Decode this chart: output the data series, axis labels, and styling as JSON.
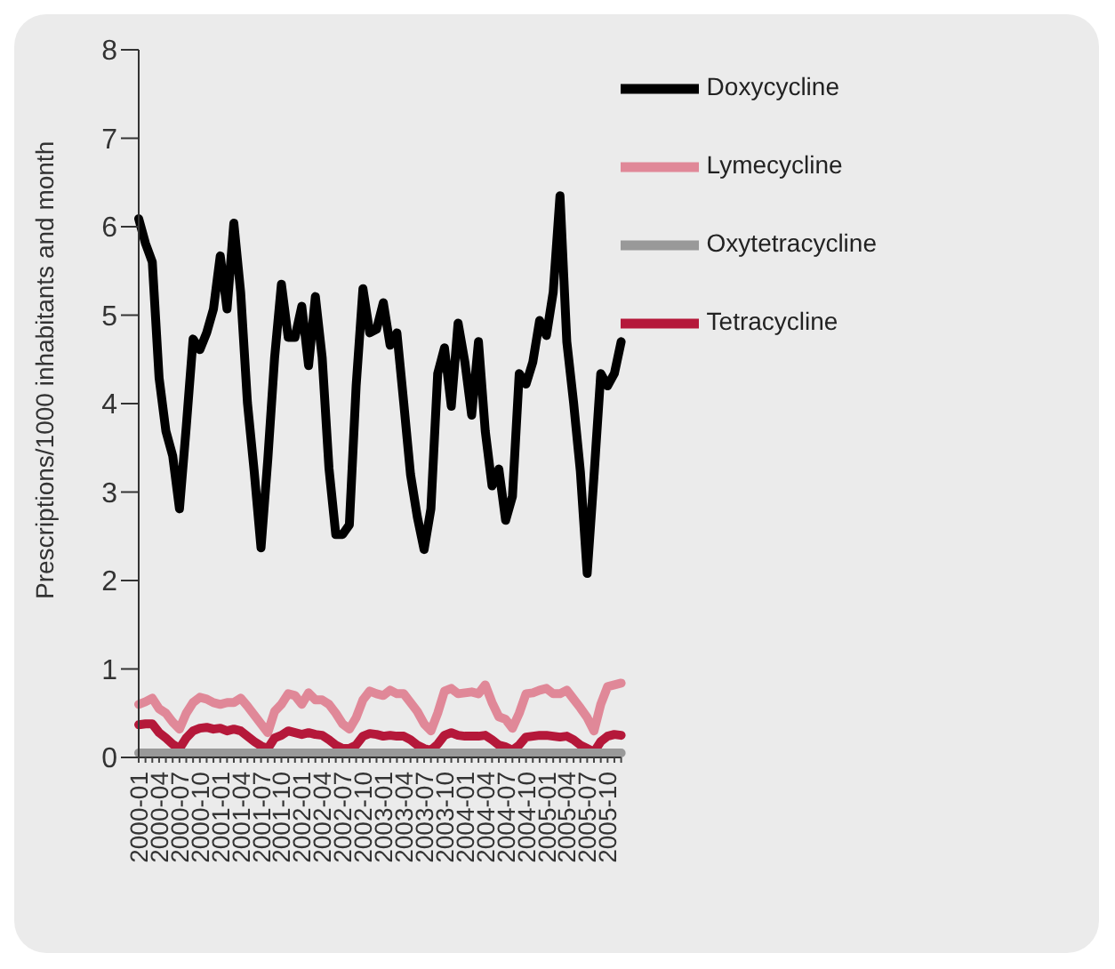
{
  "chart_data": {
    "type": "line",
    "ylabel": "Prescriptions/1000 inhabitants and month",
    "categories": [
      "2000-01",
      null,
      null,
      "2000-04",
      null,
      null,
      "2000-07",
      null,
      null,
      "2000-10",
      null,
      null,
      "2001-01",
      null,
      null,
      "2001-04",
      null,
      null,
      "2001-07",
      null,
      null,
      "2001-10",
      null,
      null,
      "2002-01",
      null,
      null,
      "2002-04",
      null,
      null,
      "2002-07",
      null,
      null,
      "2002-10",
      null,
      null,
      "2003-01",
      null,
      null,
      "2003-04",
      null,
      null,
      "2003-07",
      null,
      null,
      "2003-10",
      null,
      null,
      "2004-01",
      null,
      null,
      "2004-04",
      null,
      null,
      "2004-07",
      null,
      null,
      "2004-10",
      null,
      null,
      "2005-01",
      null,
      null,
      "2005-04",
      null,
      null,
      "2005-07",
      null,
      null,
      "2005-10",
      null,
      null
    ],
    "series": [
      {
        "name": "Doxycycline",
        "color": "#000000",
        "values": [
          6.09,
          5.81,
          5.6,
          4.29,
          3.69,
          3.41,
          2.81,
          3.74,
          4.73,
          4.61,
          4.8,
          5.07,
          5.67,
          5.07,
          6.04,
          5.26,
          4.01,
          3.23,
          2.37,
          3.37,
          4.52,
          5.35,
          4.75,
          4.75,
          5.1,
          4.43,
          5.21,
          4.52,
          3.27,
          2.52,
          2.52,
          2.63,
          4.2,
          5.3,
          4.8,
          4.84,
          5.14,
          4.66,
          4.8,
          4.01,
          3.2,
          2.72,
          2.35,
          2.81,
          4.34,
          4.63,
          3.97,
          4.91,
          4.47,
          3.87,
          4.7,
          3.69,
          3.07,
          3.26,
          2.68,
          2.95,
          4.34,
          4.22,
          4.47,
          4.94,
          4.77,
          5.26,
          6.35,
          4.7,
          4.01,
          3.23,
          2.08,
          3.18,
          4.34,
          4.2,
          4.34,
          4.7
        ]
      },
      {
        "name": "Lymecycline",
        "color": "#e08898",
        "values": [
          0.6,
          0.63,
          0.67,
          0.55,
          0.5,
          0.4,
          0.32,
          0.5,
          0.62,
          0.68,
          0.66,
          0.62,
          0.6,
          0.62,
          0.62,
          0.67,
          0.58,
          0.48,
          0.38,
          0.28,
          0.52,
          0.6,
          0.72,
          0.7,
          0.6,
          0.73,
          0.65,
          0.65,
          0.6,
          0.5,
          0.38,
          0.32,
          0.45,
          0.65,
          0.75,
          0.72,
          0.7,
          0.76,
          0.72,
          0.72,
          0.62,
          0.52,
          0.38,
          0.3,
          0.5,
          0.75,
          0.78,
          0.72,
          0.73,
          0.74,
          0.72,
          0.82,
          0.62,
          0.46,
          0.43,
          0.33,
          0.5,
          0.72,
          0.73,
          0.76,
          0.78,
          0.72,
          0.72,
          0.76,
          0.66,
          0.56,
          0.45,
          0.3,
          0.6,
          0.8,
          0.82,
          0.84
        ]
      },
      {
        "name": "Tetracycline",
        "color": "#b5183a",
        "values": [
          0.37,
          0.38,
          0.38,
          0.28,
          0.22,
          0.15,
          0.1,
          0.22,
          0.3,
          0.33,
          0.34,
          0.32,
          0.33,
          0.3,
          0.32,
          0.3,
          0.24,
          0.18,
          0.13,
          0.1,
          0.22,
          0.25,
          0.3,
          0.28,
          0.26,
          0.28,
          0.26,
          0.25,
          0.2,
          0.14,
          0.1,
          0.1,
          0.14,
          0.24,
          0.27,
          0.26,
          0.24,
          0.25,
          0.24,
          0.24,
          0.2,
          0.14,
          0.1,
          0.08,
          0.15,
          0.25,
          0.28,
          0.25,
          0.24,
          0.24,
          0.24,
          0.25,
          0.2,
          0.14,
          0.12,
          0.08,
          0.14,
          0.23,
          0.24,
          0.25,
          0.25,
          0.24,
          0.23,
          0.24,
          0.2,
          0.14,
          0.1,
          0.06,
          0.18,
          0.24,
          0.26,
          0.25
        ]
      },
      {
        "name": "Oxytetracycline",
        "color": "#999999",
        "values": [
          0.05,
          0.05,
          0.05,
          0.05,
          0.05,
          0.05,
          0.05,
          0.05,
          0.05,
          0.05,
          0.05,
          0.05,
          0.05,
          0.05,
          0.05,
          0.05,
          0.05,
          0.05,
          0.05,
          0.05,
          0.05,
          0.05,
          0.05,
          0.05,
          0.05,
          0.05,
          0.05,
          0.05,
          0.05,
          0.05,
          0.05,
          0.05,
          0.05,
          0.05,
          0.05,
          0.05,
          0.05,
          0.05,
          0.05,
          0.05,
          0.05,
          0.05,
          0.05,
          0.05,
          0.05,
          0.05,
          0.05,
          0.05,
          0.05,
          0.05,
          0.05,
          0.05,
          0.05,
          0.05,
          0.05,
          0.05,
          0.05,
          0.05,
          0.05,
          0.05,
          0.05,
          0.05,
          0.05,
          0.05,
          0.05,
          0.05,
          0.05,
          0.05,
          0.05,
          0.05,
          0.05,
          0.05
        ]
      }
    ],
    "ylim": [
      0,
      8
    ],
    "yticks": [
      0,
      1,
      2,
      3,
      4,
      5,
      6,
      7,
      8
    ],
    "grid": false,
    "legend": "top right",
    "marker": "none",
    "line_style": "solid"
  }
}
